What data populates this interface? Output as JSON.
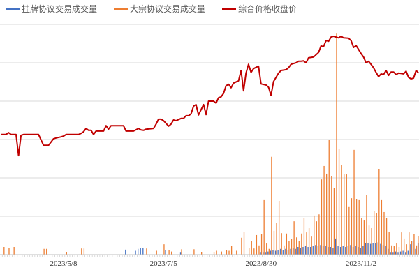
{
  "chart_data": {
    "type": "bar+line",
    "legend_position": "top",
    "grid": true,
    "ylim": [
      0,
      6
    ],
    "x_ticks": [
      {
        "index": 25,
        "label": "2023/5/8"
      },
      {
        "index": 65,
        "label": "2023/7/5"
      },
      {
        "index": 104,
        "label": "2023/8/30"
      },
      {
        "index": 144,
        "label": "2023/11/2"
      }
    ],
    "series": [
      {
        "name": "挂牌协议交易成交量",
        "type": "bar",
        "color": "#4472C4",
        "values": [
          0,
          0,
          0,
          0,
          0,
          0,
          0,
          0,
          0,
          0,
          0,
          0,
          0,
          0,
          0,
          0,
          0,
          0,
          0,
          0,
          0,
          0,
          0,
          0,
          0,
          0,
          0,
          0,
          0,
          0,
          0,
          0,
          0,
          0,
          0,
          0,
          0,
          0,
          0,
          0,
          0,
          0,
          0,
          0,
          0,
          0,
          0,
          0,
          0,
          0,
          0.13,
          0,
          0,
          0,
          0.1,
          0.15,
          0.18,
          0.18,
          0,
          0,
          0,
          0,
          0,
          0,
          0,
          0,
          0.12,
          0,
          0,
          0,
          0,
          0,
          0.05,
          0,
          0,
          0,
          0,
          0,
          0,
          0,
          0,
          0,
          0,
          0,
          0,
          0,
          0,
          0,
          0,
          0,
          0,
          0,
          0,
          0,
          0,
          0,
          0,
          0,
          0,
          0,
          0,
          0,
          0,
          0,
          0.05,
          0.05,
          0.05,
          0.08,
          0.1,
          0.12,
          0.1,
          0.12,
          0.15,
          0.12,
          0.15,
          0.12,
          0.15,
          0.18,
          0.15,
          0.2,
          0.18,
          0.2,
          0.22,
          0.2,
          0.2,
          0.22,
          0.25,
          0.22,
          0.25,
          0.22,
          0.22,
          0.2,
          0.2,
          0.18,
          0.42,
          0.22,
          0.2,
          0.22,
          0.2,
          0.22,
          0.25,
          0.2,
          0.22,
          0.2,
          0.18,
          0.22,
          0.3,
          0.3,
          0.28,
          0.3,
          0.3,
          0.32,
          0.28,
          0.25,
          0.22,
          0.15,
          0.05,
          0.05,
          0.08,
          0.05,
          0.08,
          0.1,
          0.05,
          0.1,
          0.27,
          0.35,
          0.15,
          0.3
        ]
      },
      {
        "name": "大宗协议交易成交量",
        "type": "bar",
        "color": "#ED7D31",
        "values": [
          0,
          0.2,
          0,
          0.18,
          0,
          0.2,
          0,
          0,
          0,
          0,
          0,
          0,
          0,
          0,
          0,
          0,
          0,
          0.15,
          0.15,
          0,
          0,
          0,
          0,
          0,
          0,
          0,
          0.06,
          0,
          0,
          0,
          0,
          0,
          0.16,
          0.16,
          0,
          0,
          0,
          0,
          0,
          0,
          0,
          0,
          0,
          0,
          0,
          0,
          0,
          0,
          0,
          0,
          0,
          0,
          0,
          0,
          0,
          0,
          0,
          0,
          0.16,
          0,
          0,
          0,
          0.1,
          0,
          0,
          0.27,
          0,
          0.12,
          0.08,
          0,
          0,
          0,
          0.14,
          0,
          0,
          0,
          0,
          0.14,
          0,
          0,
          0.06,
          0,
          0,
          0,
          0,
          0.06,
          0.1,
          0,
          0.08,
          0,
          0.12,
          0.1,
          0.22,
          0,
          0.1,
          0,
          0.44,
          0.6,
          0,
          0.18,
          0.36,
          0.16,
          0.51,
          0.24,
          0.53,
          1.42,
          0.29,
          0.15,
          2.55,
          0.62,
          0.82,
          1.4,
          0.56,
          0.24,
          0.55,
          0.36,
          0.4,
          0.87,
          0.45,
          0.36,
          0.55,
          0.95,
          0.58,
          0.69,
          0.47,
          1.02,
          0.87,
          1.05,
          1.96,
          2.31,
          2.11,
          3.0,
          2.04,
          1.73,
          5.76,
          2.75,
          2.33,
          2.09,
          2.09,
          1.24,
          1.47,
          2.73,
          1.44,
          1.42,
          0.96,
          0.89,
          1.55,
          0.76,
          0.69,
          1.13,
          1.09,
          2.22,
          1.42,
          1.11,
          0.96,
          0.6,
          0.24,
          0.22,
          0.29,
          0.2,
          0.58,
          0.42,
          0.27,
          0.58,
          0.36,
          0.53,
          0.24,
          0.49
        ]
      },
      {
        "name": "综合价格收盘价",
        "type": "line",
        "color": "#C00000",
        "points": [
          [
            0,
            3.13
          ],
          [
            2,
            3.13
          ],
          [
            3,
            3.18
          ],
          [
            4,
            3.13
          ],
          [
            6,
            3.13
          ],
          [
            7,
            2.58
          ],
          [
            8,
            3.11
          ],
          [
            9,
            3.13
          ],
          [
            15,
            3.13
          ],
          [
            17,
            2.85
          ],
          [
            19,
            2.85
          ],
          [
            21,
            3.02
          ],
          [
            22,
            3.04
          ],
          [
            24,
            3.07
          ],
          [
            25,
            3.09
          ],
          [
            26,
            3.13
          ],
          [
            31,
            3.13
          ],
          [
            32,
            3.16
          ],
          [
            33,
            3.2
          ],
          [
            34,
            3.29
          ],
          [
            35,
            3.24
          ],
          [
            36,
            3.24
          ],
          [
            37,
            3.13
          ],
          [
            38,
            3.22
          ],
          [
            41,
            3.22
          ],
          [
            42,
            3.36
          ],
          [
            43,
            3.27
          ],
          [
            44,
            3.36
          ],
          [
            49,
            3.36
          ],
          [
            50,
            3.22
          ],
          [
            53,
            3.22
          ],
          [
            55,
            3.29
          ],
          [
            56,
            3.25
          ],
          [
            57,
            3.24
          ],
          [
            58,
            3.27
          ],
          [
            61,
            3.29
          ],
          [
            62,
            3.4
          ],
          [
            63,
            3.53
          ],
          [
            64,
            3.53
          ],
          [
            65,
            3.49
          ],
          [
            67,
            3.35
          ],
          [
            68,
            3.4
          ],
          [
            69,
            3.51
          ],
          [
            70,
            3.49
          ],
          [
            72,
            3.55
          ],
          [
            73,
            3.55
          ],
          [
            74,
            3.62
          ],
          [
            75,
            3.62
          ],
          [
            76,
            3.67
          ],
          [
            77,
            3.87
          ],
          [
            78,
            3.91
          ],
          [
            79,
            3.64
          ],
          [
            81,
            3.91
          ],
          [
            82,
            3.65
          ],
          [
            83,
            4.0
          ],
          [
            85,
            4.0
          ],
          [
            86,
            3.95
          ],
          [
            87,
            4.09
          ],
          [
            88,
            4.11
          ],
          [
            89,
            4.2
          ],
          [
            90,
            4.4
          ],
          [
            91,
            4.44
          ],
          [
            92,
            4.35
          ],
          [
            93,
            4.47
          ],
          [
            95,
            4.53
          ],
          [
            96,
            4.8
          ],
          [
            97,
            4.27
          ],
          [
            98,
            4.73
          ],
          [
            99,
            4.96
          ],
          [
            100,
            4.75
          ],
          [
            101,
            4.85
          ],
          [
            103,
            4.91
          ],
          [
            104,
            4.45
          ],
          [
            106,
            4.42
          ],
          [
            107,
            4.36
          ],
          [
            108,
            4.15
          ],
          [
            109,
            4.51
          ],
          [
            111,
            4.73
          ],
          [
            112,
            4.8
          ],
          [
            114,
            4.82
          ],
          [
            115,
            4.87
          ],
          [
            116,
            4.96
          ],
          [
            117,
            4.98
          ],
          [
            118,
            5.0
          ],
          [
            119,
            5.04
          ],
          [
            120,
            5.04
          ],
          [
            121,
            5.05
          ],
          [
            122,
            5.0
          ],
          [
            123,
            5.13
          ],
          [
            125,
            5.15
          ],
          [
            127,
            5.27
          ],
          [
            128,
            5.44
          ],
          [
            129,
            5.42
          ],
          [
            130,
            5.58
          ],
          [
            131,
            5.56
          ],
          [
            132,
            5.67
          ],
          [
            133,
            5.69
          ],
          [
            135,
            5.65
          ],
          [
            136,
            5.69
          ],
          [
            137,
            5.65
          ],
          [
            139,
            5.64
          ],
          [
            140,
            5.58
          ],
          [
            141,
            5.4
          ],
          [
            142,
            5.45
          ],
          [
            143,
            5.35
          ],
          [
            144,
            5.24
          ],
          [
            145,
            5.15
          ],
          [
            146,
            5.0
          ],
          [
            147,
            5.04
          ],
          [
            148,
            4.96
          ],
          [
            149,
            4.87
          ],
          [
            150,
            4.75
          ],
          [
            151,
            4.64
          ],
          [
            152,
            4.71
          ],
          [
            153,
            4.69
          ],
          [
            154,
            4.8
          ],
          [
            155,
            4.67
          ],
          [
            156,
            4.76
          ],
          [
            157,
            4.76
          ],
          [
            158,
            4.69
          ],
          [
            159,
            4.73
          ],
          [
            161,
            4.71
          ],
          [
            162,
            4.78
          ],
          [
            163,
            4.62
          ],
          [
            164,
            4.58
          ],
          [
            165,
            4.6
          ],
          [
            166,
            4.8
          ],
          [
            167,
            4.73
          ]
        ]
      }
    ]
  }
}
